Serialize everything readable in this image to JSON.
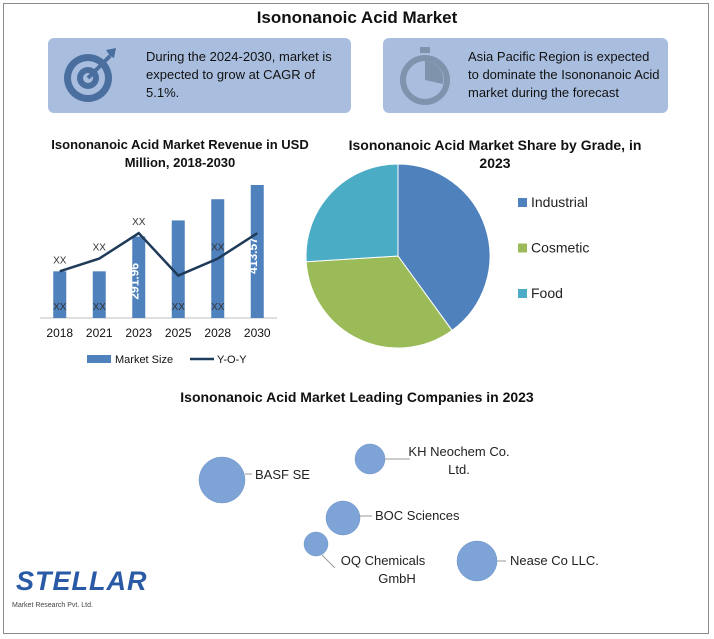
{
  "title": "Isononanoic Acid Market",
  "callouts": {
    "left": {
      "icon": "target-icon",
      "text": "During the 2024-2030, market is expected to grow at CAGR of 5.1%."
    },
    "right": {
      "icon": "stopwatch-icon",
      "text": "Asia Pacific Region is expected to dominate the Isononanoic Acid market during the forecast"
    }
  },
  "brand": {
    "name": "STELLAR",
    "sub": "Market Research Pvt. Ltd."
  },
  "chart_data": [
    {
      "type": "bar",
      "title": "Isononanoic Acid Market Revenue in USD Million, 2018-2030",
      "categories": [
        "2018",
        "2021",
        "2023",
        "2025",
        "2028",
        "2030"
      ],
      "series": [
        {
          "name": "Market Size",
          "type": "bar",
          "color": "#4f81bd",
          "values": [
            210,
            210,
            291.96,
            330,
            380,
            413.57
          ],
          "data_labels": [
            "XX",
            "XX",
            "291.96",
            "XX",
            "XX",
            "413.57"
          ]
        },
        {
          "name": "Y-O-Y",
          "type": "line",
          "color": "#1f3b5a",
          "values": [
            210,
            240,
            300,
            200,
            240,
            300
          ],
          "data_labels": [
            "XX",
            "XX",
            "XX",
            "",
            "XX",
            ""
          ]
        }
      ],
      "ylim": [
        100,
        430
      ],
      "legend": "bottom"
    },
    {
      "type": "pie",
      "title": "Isononanoic Acid Market Share by Grade, in 2023",
      "categories": [
        "Industrial",
        "Cosmetic",
        "Food"
      ],
      "values": [
        40,
        34,
        26
      ],
      "colors": [
        "#4f81bd",
        "#9bbb59",
        "#4bacc6"
      ],
      "legend": "right"
    },
    {
      "type": "scatter",
      "title": "Isononanoic Acid Market Leading Companies in 2023",
      "points": [
        {
          "name": "BASF SE",
          "color": "#7ea3d6"
        },
        {
          "name": "KH Neochem Co. Ltd.",
          "color": "#7ea3d6"
        },
        {
          "name": "BOC Sciences",
          "color": "#7ea3d6"
        },
        {
          "name": "OQ Chemicals GmbH",
          "color": "#7ea3d6"
        },
        {
          "name": "Nease Co LLC.",
          "color": "#7ea3d6"
        }
      ]
    }
  ]
}
